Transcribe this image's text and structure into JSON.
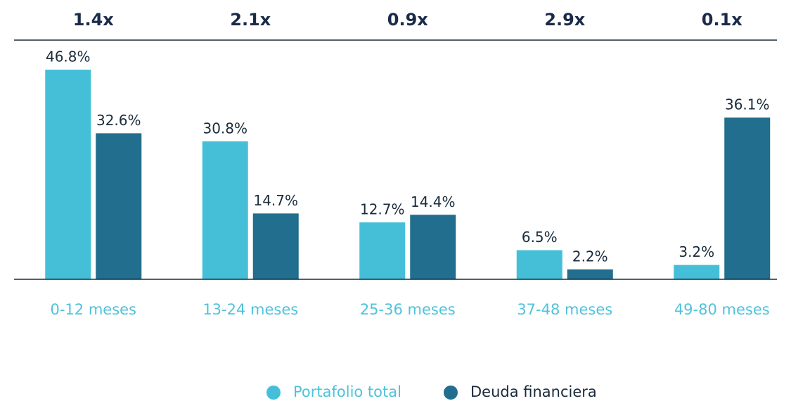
{
  "chart_data": {
    "type": "bar",
    "annotations": [
      "1.4x",
      "2.1x",
      "0.9x",
      "2.9x",
      "0.1x"
    ],
    "categories": [
      "0-12 meses",
      "13-24 meses",
      "25-36 meses",
      "37-48 meses",
      "49-80 meses"
    ],
    "series": [
      {
        "name": "Portafolio total",
        "color": "#45bfd8",
        "values": [
          46.8,
          30.8,
          12.7,
          6.5,
          3.2
        ],
        "value_labels": [
          "46.8%",
          "30.8%",
          "12.7%",
          "6.5%",
          "3.2%"
        ]
      },
      {
        "name": "Deuda financiera",
        "color": "#216e8e",
        "values": [
          32.6,
          14.7,
          14.4,
          2.2,
          36.1
        ],
        "value_labels": [
          "32.6%",
          "14.7%",
          "14.4%",
          "2.2%",
          "36.1%"
        ]
      }
    ]
  }
}
